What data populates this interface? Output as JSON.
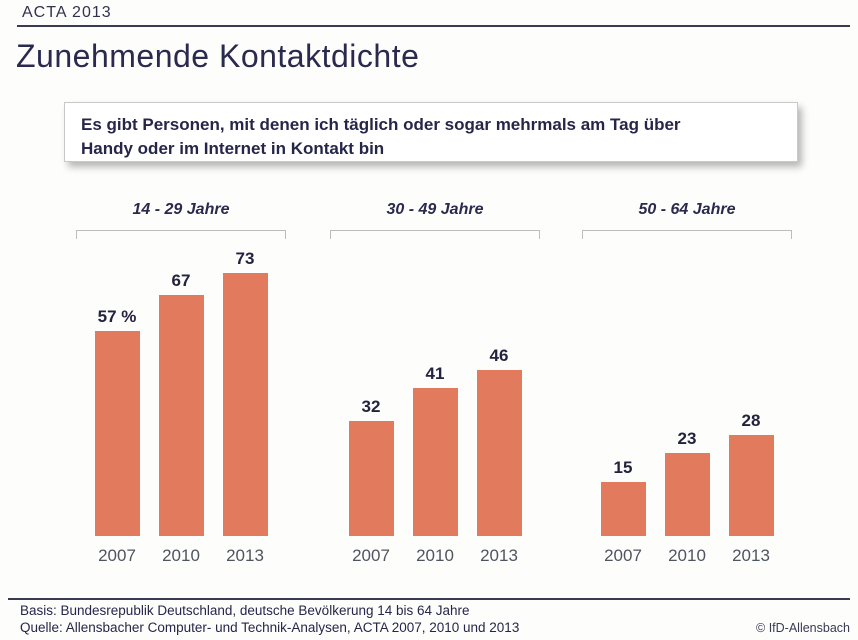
{
  "header": {
    "label": "ACTA 2013"
  },
  "title": "Zunehmende Kontaktdichte",
  "statement_box": {
    "line1": "Es gibt Personen, mit denen ich täglich oder sogar mehrmals am Tag über",
    "line2": "Handy oder im Internet in Kontakt bin"
  },
  "chart_data": {
    "type": "bar",
    "title": "Zunehmende Kontaktdichte",
    "unit": "percent",
    "categories": [
      "2007",
      "2010",
      "2013"
    ],
    "groups": [
      {
        "label": "14 - 29 Jahre",
        "values": [
          57,
          67,
          73
        ],
        "value_labels": [
          "57 %",
          "67",
          "73"
        ]
      },
      {
        "label": "30 - 49 Jahre",
        "values": [
          32,
          41,
          46
        ],
        "value_labels": [
          "32",
          "41",
          "46"
        ]
      },
      {
        "label": "50 - 64 Jahre",
        "values": [
          15,
          23,
          28
        ],
        "value_labels": [
          "15",
          "23",
          "28"
        ]
      }
    ],
    "ylim": [
      0,
      80
    ],
    "grid": false,
    "legend": "none",
    "bar_color": "#E27A5E"
  },
  "footer": {
    "basis": "Basis: Bundesrepublik Deutschland, deutsche Bevölkerung 14 bis 64 Jahre",
    "quelle": "Quelle: Allensbacher Computer- und Technik-Analysen, ACTA 2007, 2010 und 2013",
    "copyright": "© IfD-Allensbach"
  },
  "colors": {
    "bar": "#E27A5E",
    "navy_text": "#2A2A4E",
    "year_text": "#4F5560",
    "bracket": "#BDBDBD"
  }
}
